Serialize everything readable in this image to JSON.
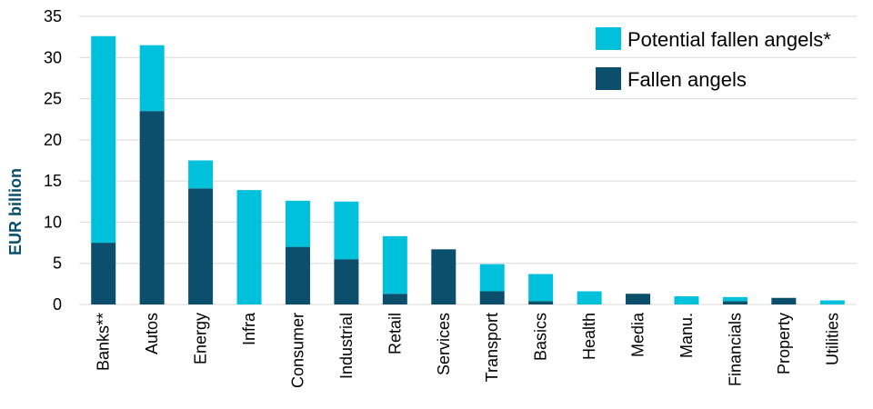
{
  "chart_data": {
    "type": "bar",
    "stacked": true,
    "ylabel": "EUR billion",
    "ylim": [
      0,
      35
    ],
    "yticks": [
      "0",
      "5",
      "10",
      "15",
      "20",
      "25",
      "30",
      "35"
    ],
    "grid": true,
    "legend_position": "top-right",
    "categories": [
      "Banks**",
      "Autos",
      "Energy",
      "Infra",
      "Consumer",
      "Industrial",
      "Retail",
      "Services",
      "Transport",
      "Basics",
      "Health",
      "Media",
      "Manu.",
      "Financials",
      "Property",
      "Utilities"
    ],
    "series": [
      {
        "name": "Fallen angels",
        "color": "#0b4f6c",
        "values": [
          7.5,
          23.5,
          14.1,
          0,
          7.0,
          5.5,
          1.3,
          6.7,
          1.6,
          0.4,
          0,
          1.3,
          0,
          0.4,
          0.8,
          0
        ]
      },
      {
        "name": "Potential fallen angels*",
        "color": "#00c1dc",
        "values": [
          25.1,
          8.0,
          3.4,
          13.9,
          5.6,
          7.0,
          7.0,
          0,
          3.3,
          3.3,
          1.6,
          0,
          1.0,
          0.5,
          0,
          0.5
        ]
      }
    ]
  }
}
